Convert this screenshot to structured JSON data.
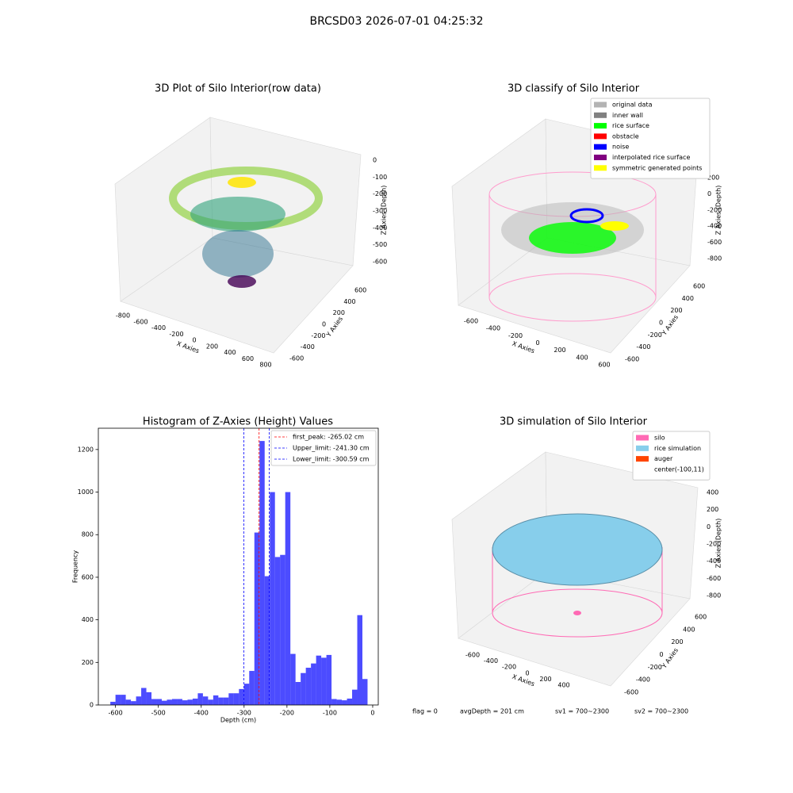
{
  "title": "BRCSD03 2026-07-01 04:25:32",
  "chart_data": [
    {
      "type": "scatter3d",
      "title": "3D Plot of Silo Interior(row data)",
      "xlabel": "X Axies",
      "ylabel": "Y Axies",
      "zlabel": "Z Axies (Depth)",
      "xticks": [
        -800,
        -600,
        -400,
        -200,
        0,
        200,
        400,
        600,
        800
      ],
      "yticks": [
        -600,
        -400,
        -200,
        0,
        200,
        400,
        600
      ],
      "zticks": [
        0,
        -100,
        -200,
        -300,
        -400,
        -500,
        -600
      ]
    },
    {
      "type": "scatter3d",
      "title": "3D classify of Silo Interior",
      "xlabel": "X Axies",
      "ylabel": "Y Axies",
      "zlabel": "Z Axies (Depth)",
      "xticks": [
        -600,
        -400,
        -200,
        0,
        200,
        400,
        600
      ],
      "yticks": [
        -600,
        -400,
        -200,
        0,
        200,
        400,
        600
      ],
      "zticks": [
        200,
        0,
        -200,
        -400,
        -600,
        -800
      ],
      "legend": [
        {
          "name": "original data",
          "color": "#b3b3b3"
        },
        {
          "name": "inner wall",
          "color": "#808080"
        },
        {
          "name": "rice surface",
          "color": "#00ff00"
        },
        {
          "name": "obstacle",
          "color": "#ff0000"
        },
        {
          "name": "noise",
          "color": "#0000ff"
        },
        {
          "name": "interpolated rice surface",
          "color": "#800080"
        },
        {
          "name": "symmetric generated points",
          "color": "#ffff00"
        }
      ]
    },
    {
      "type": "histogram",
      "title": "Histogram of Z-Axies (Height) Values",
      "xlabel": "Depth (cm)",
      "ylabel": "Frequency",
      "color": "#0000ff",
      "bins": [
        -612,
        -600,
        -588,
        -576,
        -564,
        -552,
        -540,
        -528,
        -516,
        -504,
        -492,
        -480,
        -468,
        -456,
        -444,
        -432,
        -420,
        -408,
        -396,
        -384,
        -372,
        -360,
        -348,
        -336,
        -324,
        -312,
        -300,
        -288,
        -276,
        -264,
        -252,
        -240,
        -228,
        -216,
        -204,
        -192,
        -180,
        -168,
        -156,
        -144,
        -132,
        -120,
        -108,
        -96,
        -84,
        -72,
        -60,
        -48,
        -36,
        -24,
        -12
      ],
      "values": [
        15,
        48,
        48,
        25,
        18,
        40,
        80,
        60,
        28,
        28,
        20,
        25,
        28,
        28,
        22,
        25,
        30,
        55,
        40,
        25,
        45,
        35,
        35,
        55,
        55,
        75,
        100,
        160,
        810,
        1240,
        605,
        1000,
        695,
        705,
        1000,
        240,
        108,
        150,
        175,
        195,
        232,
        222,
        235,
        28,
        25,
        22,
        30,
        72,
        422,
        122
      ],
      "xlim": [
        -640,
        13
      ],
      "ylim": [
        0,
        1300
      ],
      "xticks": [
        -600,
        -500,
        -400,
        -300,
        -200,
        -100,
        0
      ],
      "yticks": [
        0,
        200,
        400,
        600,
        800,
        1000,
        1200
      ],
      "vlines": [
        {
          "value": -265.02,
          "label": "first_peak: -265.02 cm",
          "color": "#ff0000"
        },
        {
          "value": -241.3,
          "label": "Upper_limit: -241.30 cm",
          "color": "#0000ff"
        },
        {
          "value": -300.59,
          "label": "Lower_limit: -300.59 cm",
          "color": "#0000ff"
        }
      ]
    },
    {
      "type": "surface3d",
      "title": "3D simulation of Silo Interior",
      "xlabel": "X Axies",
      "ylabel": "Y Axies",
      "zlabel": "Z Axies (Depth)",
      "xticks": [
        -600,
        -400,
        -200,
        0,
        200,
        400
      ],
      "yticks": [
        -600,
        -400,
        -200,
        0,
        200,
        400,
        600
      ],
      "zticks": [
        400,
        200,
        0,
        -200,
        -400,
        -600,
        -800
      ],
      "legend": [
        {
          "name": "silo",
          "color": "#ff69b4"
        },
        {
          "name": "rice simulation",
          "color": "#87ceeb"
        },
        {
          "name": "auger",
          "color": "#ff4500"
        }
      ],
      "annotation": "center(-100,11)"
    }
  ],
  "status": [
    "flag = 0",
    "avgDepth = 201 cm",
    "sv1 = 700~2300",
    "sv2 = 700~2300"
  ]
}
